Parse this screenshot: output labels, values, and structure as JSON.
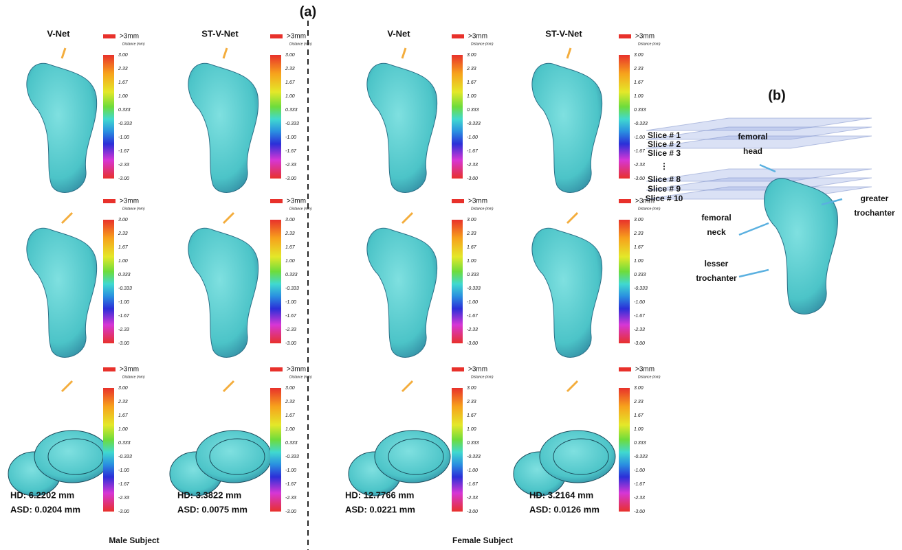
{
  "panel_a": {
    "label": "(a)",
    "columns": [
      {
        "title": "V-Net",
        "hd": "HD: 6.2202 mm",
        "asd": "ASD: 0.0204 mm"
      },
      {
        "title": "ST-V-Net",
        "hd": "HD: 3.3822 mm",
        "asd": "ASD: 0.0075 mm"
      },
      {
        "title": "V-Net",
        "hd": "HD: 12.7766 mm",
        "asd": "ASD: 0.0221 mm"
      },
      {
        "title": "ST-V-Net",
        "hd": "HD: 3.2164 mm",
        "asd": "ASD: 0.0126 mm"
      }
    ],
    "subjects": [
      "Male Subject",
      "Female Subject"
    ]
  },
  "colorbar": {
    "over_label": ">3mm",
    "title": "Distance (mm)",
    "ticks": [
      "3.00",
      "2.33",
      "1.67",
      "1.00",
      "0.333",
      "-0.333",
      "-1.00",
      "-1.67",
      "-2.33",
      "-3.00"
    ]
  },
  "panel_b": {
    "label": "(b)",
    "slices": [
      "Slice # 1",
      "Slice # 2",
      "Slice # 3",
      "⋮",
      "Slice # 8",
      "Slice # 9",
      "Slice # 10"
    ],
    "annotations": [
      {
        "lines": [
          "femoral",
          "head"
        ]
      },
      {
        "lines": [
          "greater",
          "trochanter"
        ]
      },
      {
        "lines": [
          "femoral",
          "neck"
        ]
      },
      {
        "lines": [
          "lesser",
          "trochanter"
        ]
      }
    ]
  }
}
